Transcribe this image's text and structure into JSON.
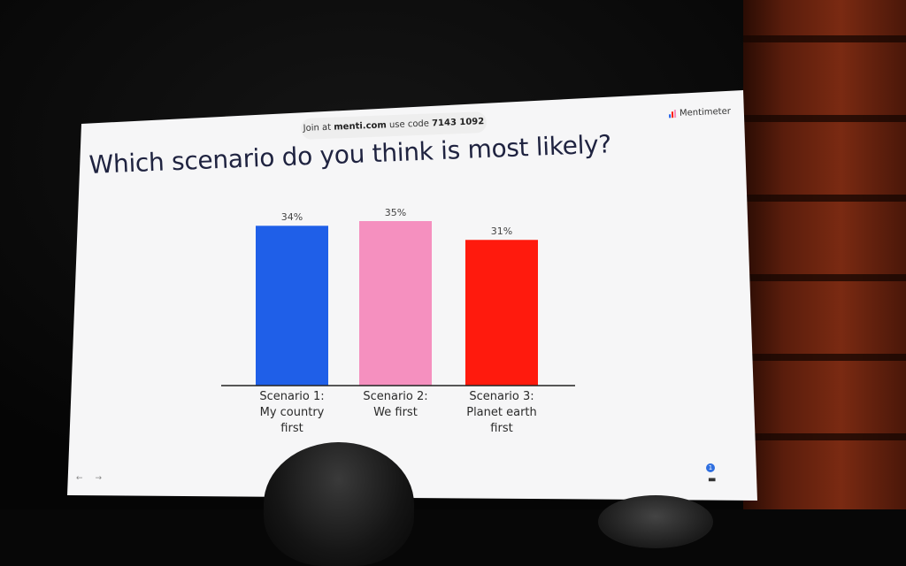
{
  "slide": {
    "join_prefix": "Join at",
    "join_site": "menti.com",
    "join_code_prefix": "use code",
    "join_code": "7143 1092",
    "brand": "Mentimeter",
    "question": "Which scenario do you think is most likely?",
    "reaction_count": "1"
  },
  "colors": {
    "bar1": "#1f5fe8",
    "bar2": "#f590bf",
    "bar3": "#ff1a0d",
    "title": "#1f2340"
  },
  "icons": {
    "prev": "arrow-left-icon",
    "next": "arrow-right-icon",
    "reactions": "reactions-icon"
  },
  "chart_data": {
    "type": "bar",
    "categories": [
      [
        "Scenario 1:",
        "My country",
        "first"
      ],
      [
        "Scenario 2:",
        "We first"
      ],
      [
        "Scenario 3:",
        "Planet earth",
        "first"
      ]
    ],
    "values": [
      34,
      35,
      31
    ],
    "value_labels": [
      "34%",
      "35%",
      "31%"
    ],
    "unit": "%",
    "ylim": [
      0,
      35
    ],
    "grid": false
  }
}
